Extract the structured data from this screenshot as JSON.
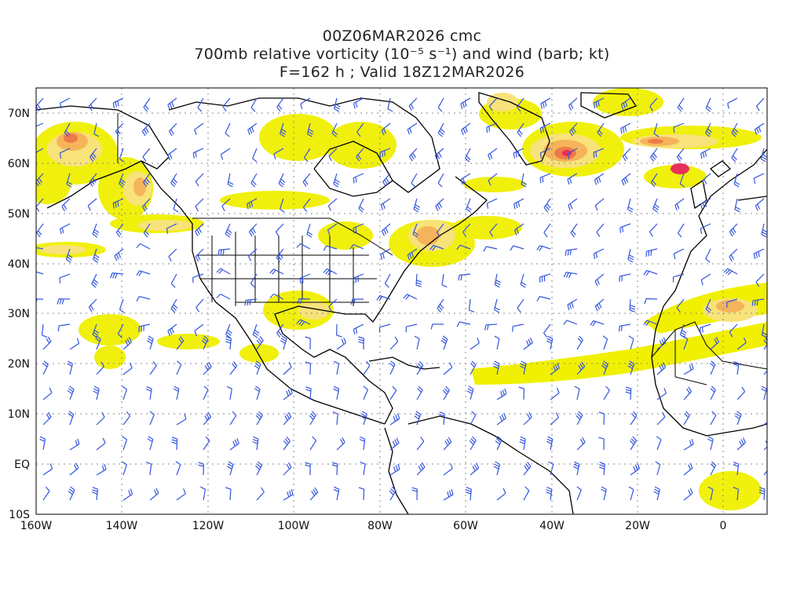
{
  "title": {
    "line1": "00Z06MAR2026 cmc",
    "line2": "700mb relative vorticity (10⁻⁵ s⁻¹) and wind (barb; kt)",
    "line3": "F=162 h ; Valid 18Z12MAR2026"
  },
  "axes": {
    "lat_labels": [
      "70N",
      "60N",
      "50N",
      "40N",
      "30N",
      "20N",
      "10N",
      "EQ",
      "10S"
    ],
    "lon_labels": [
      "160W",
      "140W",
      "120W",
      "100W",
      "80W",
      "60W",
      "40W",
      "20W",
      "0"
    ]
  },
  "colors": {
    "level1": "#f0f000",
    "level2": "#f8e27a",
    "level3": "#f5b45a",
    "level4": "#ee7a4a",
    "level5": "#e8305a",
    "barb": "#3355dd",
    "coast": "#000000",
    "grid": "#888888"
  }
}
